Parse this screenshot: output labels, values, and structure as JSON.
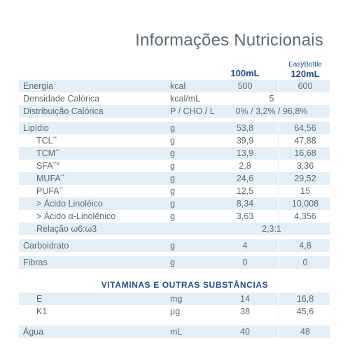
{
  "title": "Informações Nutricionais",
  "header": {
    "col100": "100mL",
    "brand": "EasyBottle",
    "col120": "120mL"
  },
  "rows": [
    {
      "name": "Energia",
      "unit": "kcal",
      "v100": "500",
      "v120": "600"
    },
    {
      "name": "Densidade Calórica",
      "unit": "kcal/mL",
      "span": "5"
    },
    {
      "name": "Distribuição Calórica",
      "unit": "P / CHO / L",
      "span": "0% / 3,2% / 96,8%"
    },
    {
      "name": "Lipídio",
      "unit": "g",
      "v100": "53,8",
      "v120": "64,56"
    },
    {
      "name": "TCL",
      "sup": "**",
      "unit": "g",
      "v100": "39,9",
      "v120": "47,88"
    },
    {
      "name": "TCM",
      "sup": "**",
      "unit": "g",
      "v100": "13,9",
      "v120": "16,68"
    },
    {
      "name": "SFA",
      "sup": "**a",
      "unit": "g",
      "v100": "2,8",
      "v120": "3,36"
    },
    {
      "name": "MUFA",
      "sup": "**",
      "unit": "g",
      "v100": "24,6",
      "v120": "29,52"
    },
    {
      "name": "PUFA",
      "sup": "**",
      "unit": "g",
      "v100": "12,5",
      "v120": "15"
    },
    {
      "name": "> Ácido Linoléico",
      "unit": "g",
      "v100": "8,34",
      "v120": "10,008"
    },
    {
      "name": "> Ácido α-Linolênico",
      "unit": "g",
      "v100": "3,63",
      "v120": "4,356"
    },
    {
      "name": "Relação ω6:ω3",
      "span": "2,3:1"
    },
    {
      "name": "Carboidrato",
      "unit": "g",
      "v100": "4",
      "v120": "4,8"
    },
    {
      "name": "Fibras",
      "unit": "g",
      "v100": "0",
      "v120": "0"
    }
  ],
  "section_title": "VITAMINAS E OUTRAS SUBSTÂNCIAS",
  "vitamins": [
    {
      "name": "E",
      "unit": "mg",
      "v100": "14",
      "v120": "16,8"
    },
    {
      "name": "K1",
      "unit": "µg",
      "v100": "38",
      "v120": "45,6"
    },
    {
      "name": "Água",
      "unit": "mL",
      "v100": "40",
      "v120": "48"
    }
  ]
}
